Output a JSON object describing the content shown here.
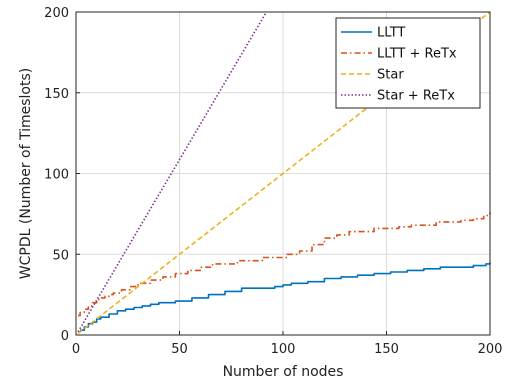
{
  "chart_data": {
    "type": "line",
    "title": "",
    "xlabel": "Number of nodes",
    "ylabel": "WCPDL (Number of Timeslots)",
    "xlim": [
      0,
      200
    ],
    "ylim": [
      0,
      200
    ],
    "xticks": [
      0,
      50,
      100,
      150,
      200
    ],
    "yticks": [
      0,
      50,
      100,
      150,
      200
    ],
    "grid": true,
    "legend_position": "top-right",
    "series": [
      {
        "name": "LLTT",
        "color": "#0072BD",
        "style": "solid",
        "x": [
          2,
          4,
          6,
          8,
          10,
          12,
          16,
          20,
          24,
          28,
          32,
          36,
          40,
          48,
          56,
          64,
          72,
          80,
          96,
          100,
          104,
          112,
          120,
          128,
          136,
          144,
          152,
          160,
          168,
          176,
          184,
          192,
          198,
          200
        ],
        "y": [
          3,
          5,
          7,
          8,
          10,
          11,
          13,
          15,
          16,
          17,
          18,
          19,
          20,
          21,
          23,
          25,
          27,
          29,
          30,
          31,
          32,
          33,
          35,
          36,
          37,
          38,
          39,
          40,
          41,
          42,
          42,
          43,
          44,
          45
        ]
      },
      {
        "name": "LLTT + ReTx",
        "color": "#D95319",
        "style": "dashdot",
        "x": [
          1,
          2,
          4,
          6,
          8,
          10,
          12,
          14,
          16,
          18,
          22,
          26,
          30,
          36,
          42,
          48,
          54,
          60,
          66,
          72,
          78,
          84,
          90,
          96,
          102,
          108,
          114,
          120,
          126,
          132,
          138,
          144,
          150,
          156,
          162,
          168,
          174,
          180,
          186,
          192,
          197,
          200
        ],
        "y": [
          12,
          14,
          16,
          18,
          20,
          22,
          23,
          24,
          25,
          26,
          28,
          30,
          32,
          34,
          36,
          38,
          40,
          42,
          44,
          44,
          46,
          46,
          48,
          48,
          50,
          52,
          56,
          60,
          62,
          64,
          64,
          66,
          66,
          67,
          68,
          68,
          70,
          70,
          71,
          72,
          74,
          76
        ]
      },
      {
        "name": "Star",
        "color": "#EDB120",
        "style": "dashed",
        "x": [
          1,
          200
        ],
        "y": [
          1,
          200
        ]
      },
      {
        "name": "Star + ReTx",
        "color": "#7E2F8E",
        "style": "dotted",
        "x": [
          1,
          92
        ],
        "y": [
          2,
          200
        ]
      }
    ]
  }
}
